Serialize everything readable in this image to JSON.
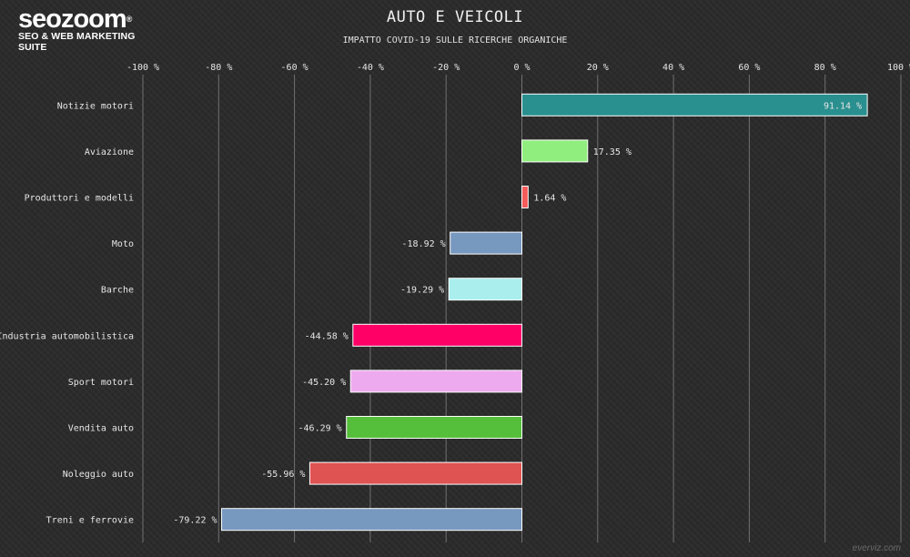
{
  "logo": {
    "wordmark": "seozoom",
    "registered": "®",
    "tagline": "SEO & WEB MARKETING SUITE"
  },
  "credit": "everviz.com",
  "chart_data": {
    "type": "bar",
    "orientation": "horizontal",
    "title": "AUTO E VEICOLI",
    "subtitle": "IMPATTO COVID-19 SULLE RICERCHE ORGANICHE",
    "xlim": [
      -100,
      100
    ],
    "xticks": [
      -100,
      -80,
      -60,
      -40,
      -20,
      0,
      20,
      40,
      60,
      80,
      100
    ],
    "xtick_labels": [
      "-100 %",
      "-80 %",
      "-60 %",
      "-40 %",
      "-20 %",
      "0 %",
      "20 %",
      "40 %",
      "60 %",
      "80 %",
      "100 %"
    ],
    "grid": true,
    "categories": [
      "Notizie motori",
      "Aviazione",
      "Produttori e modelli",
      "Moto",
      "Barche",
      "Industria automobilistica",
      "Sport motori",
      "Vendita auto",
      "Noleggio auto",
      "Treni e ferrovie"
    ],
    "values": [
      91.14,
      17.35,
      1.64,
      -18.92,
      -19.29,
      -44.58,
      -45.2,
      -46.29,
      -55.96,
      -79.22
    ],
    "data_labels": [
      "91.14 %",
      "17.35 %",
      "1.64 %",
      "-18.92 %",
      "-19.29 %",
      "-44.58 %",
      "-45.20 %",
      "-46.29 %",
      "-55.96 %",
      "-79.22 %"
    ],
    "colors": [
      "#2a8f8f",
      "#90ee7e",
      "#f45b5b",
      "#7798bf",
      "#aaeeee",
      "#ff0066",
      "#eeaaee",
      "#55bf3b",
      "#df5353",
      "#7798bf"
    ]
  }
}
